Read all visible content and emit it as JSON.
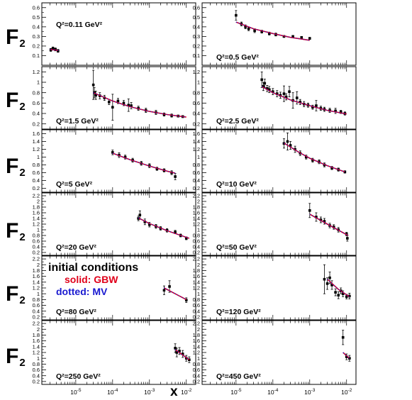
{
  "y_label": "F",
  "y_label_sub": "2",
  "x_label": "x",
  "legend": {
    "title": "initial conditions",
    "solid": "solid: GBW",
    "dotted": "dotted: MV"
  },
  "colors": {
    "solid_curve": "#e0001a",
    "dotted_curve": "#1a1ad0",
    "points": "#000000"
  },
  "chart_data": {
    "type": "scatter",
    "xlabel": "x",
    "ylabel": "F2",
    "xscale": "log",
    "xlim": [
      1.2e-06,
      0.018
    ],
    "x_ticks": [
      1e-05,
      0.0001,
      0.001,
      0.01
    ],
    "x_tick_labels": [
      [
        "10",
        "-5"
      ],
      [
        "10",
        "-4"
      ],
      [
        "10",
        "-3"
      ],
      [
        "10",
        "-2"
      ]
    ],
    "panels": [
      {
        "title": "Q²=0.11 GeV²",
        "ylim": [
          0.0,
          0.65
        ],
        "yticks": [
          0.1,
          0.2,
          0.3,
          0.4,
          0.5,
          0.6
        ],
        "ytick_labels": [
          "0.1",
          "0.2",
          "0.3",
          "0.4",
          "0.5",
          "0.6"
        ],
        "points": [
          [
            2.1e-06,
            0.16,
            0.015
          ],
          [
            2.4e-06,
            0.175,
            0.015
          ],
          [
            2.8e-06,
            0.165,
            0.015
          ],
          [
            3.3e-06,
            0.15,
            0.015
          ]
        ],
        "curve": [
          [
            2e-06,
            0.165
          ],
          [
            3.4e-06,
            0.155
          ]
        ]
      },
      {
        "title": "Q²=0.5 GeV²",
        "ylim": [
          0.0,
          0.65
        ],
        "yticks": [
          0.1,
          0.2,
          0.3,
          0.4,
          0.5,
          0.6
        ],
        "ytick_labels": [
          "0.1",
          "0.2",
          "0.3",
          "0.4",
          "0.5",
          "0.6"
        ],
        "points": [
          [
            1e-05,
            0.52,
            0.05
          ],
          [
            1.4e-05,
            0.43,
            0.02
          ],
          [
            1.8e-05,
            0.4,
            0.02
          ],
          [
            2.2e-05,
            0.38,
            0.02
          ],
          [
            3.2e-05,
            0.36,
            0.02
          ],
          [
            5e-05,
            0.35,
            0.015
          ],
          [
            8e-05,
            0.33,
            0.015
          ],
          [
            0.00012,
            0.32,
            0.015
          ],
          [
            0.0002,
            0.3,
            0.01
          ],
          [
            0.00035,
            0.3,
            0.01
          ],
          [
            0.0006,
            0.29,
            0.01
          ],
          [
            0.001,
            0.28,
            0.01
          ]
        ],
        "curve": [
          [
            1e-05,
            0.45
          ],
          [
            3e-05,
            0.38
          ],
          [
            0.0001,
            0.33
          ],
          [
            0.0003,
            0.29
          ],
          [
            0.001,
            0.26
          ]
        ]
      },
      {
        "title": "Q²=1.5 GeV²",
        "ylim": [
          0.1,
          1.3
        ],
        "yticks": [
          0.2,
          0.4,
          0.6,
          0.8,
          1.0,
          1.2
        ],
        "ytick_labels": [
          "0.2",
          "0.4",
          "0.6",
          "0.8",
          "1",
          "1.2"
        ],
        "points": [
          [
            3e-05,
            0.95,
            0.28
          ],
          [
            3.2e-05,
            0.8,
            0.1
          ],
          [
            3.5e-05,
            0.75,
            0.08
          ],
          [
            4.5e-05,
            0.74,
            0.06
          ],
          [
            6e-05,
            0.7,
            0.05
          ],
          [
            8e-05,
            0.62,
            0.05
          ],
          [
            0.0001,
            0.52,
            0.25
          ],
          [
            0.00014,
            0.64,
            0.05
          ],
          [
            0.0002,
            0.6,
            0.05
          ],
          [
            0.00027,
            0.56,
            0.12
          ],
          [
            0.00032,
            0.55,
            0.06
          ],
          [
            0.0005,
            0.5,
            0.04
          ],
          [
            0.0008,
            0.46,
            0.04
          ],
          [
            0.0015,
            0.42,
            0.04
          ],
          [
            0.0025,
            0.38,
            0.03
          ],
          [
            0.004,
            0.36,
            0.03
          ],
          [
            0.006,
            0.35,
            0.02
          ],
          [
            0.008,
            0.34,
            0.02
          ]
        ],
        "curve": [
          [
            3e-05,
            0.8
          ],
          [
            0.0001,
            0.64
          ],
          [
            0.0003,
            0.53
          ],
          [
            0.001,
            0.44
          ],
          [
            0.003,
            0.38
          ],
          [
            0.01,
            0.33
          ]
        ]
      },
      {
        "title": "Q²=2.5 GeV²",
        "ylim": [
          0.1,
          1.3
        ],
        "yticks": [
          0.2,
          0.4,
          0.6,
          0.8,
          1.0,
          1.2
        ],
        "ytick_labels": [
          "0.2",
          "0.4",
          "0.6",
          "0.8",
          "1",
          "1.2"
        ],
        "points": [
          [
            5e-05,
            1.05,
            0.15
          ],
          [
            5.5e-05,
            0.92,
            0.08
          ],
          [
            6e-05,
            0.98,
            0.08
          ],
          [
            7e-05,
            0.88,
            0.06
          ],
          [
            8e-05,
            0.86,
            0.06
          ],
          [
            0.0001,
            0.82,
            0.06
          ],
          [
            0.00013,
            0.78,
            0.06
          ],
          [
            0.00016,
            0.75,
            0.06
          ],
          [
            0.0002,
            0.78,
            0.15
          ],
          [
            0.00023,
            0.72,
            0.06
          ],
          [
            0.00028,
            0.82,
            0.1
          ],
          [
            0.00035,
            0.65,
            0.15
          ],
          [
            0.00045,
            0.7,
            0.12
          ],
          [
            0.00055,
            0.62,
            0.05
          ],
          [
            0.0007,
            0.58,
            0.05
          ],
          [
            0.0009,
            0.56,
            0.04
          ],
          [
            0.0012,
            0.52,
            0.04
          ],
          [
            0.0015,
            0.55,
            0.1
          ],
          [
            0.002,
            0.5,
            0.04
          ],
          [
            0.0025,
            0.48,
            0.04
          ],
          [
            0.0035,
            0.46,
            0.04
          ],
          [
            0.005,
            0.45,
            0.05
          ],
          [
            0.007,
            0.43,
            0.03
          ],
          [
            0.009,
            0.4,
            0.03
          ]
        ],
        "curve": [
          [
            5e-05,
            0.92
          ],
          [
            0.0001,
            0.8
          ],
          [
            0.0003,
            0.66
          ],
          [
            0.001,
            0.55
          ],
          [
            0.003,
            0.46
          ],
          [
            0.01,
            0.39
          ]
        ]
      },
      {
        "title": "Q²=5 GeV²",
        "ylim": [
          0.1,
          1.7
        ],
        "yticks": [
          0.2,
          0.4,
          0.6,
          0.8,
          1.0,
          1.2,
          1.4,
          1.6
        ],
        "ytick_labels": [
          "0.2",
          "0.4",
          "0.6",
          "0.8",
          "1",
          "1.2",
          "1.4",
          "1.6"
        ],
        "points": [
          [
            0.0001,
            1.12,
            0.06
          ],
          [
            0.00015,
            1.05,
            0.06
          ],
          [
            0.00022,
            1.0,
            0.05
          ],
          [
            0.00035,
            0.92,
            0.05
          ],
          [
            0.0006,
            0.84,
            0.05
          ],
          [
            0.001,
            0.78,
            0.05
          ],
          [
            0.0016,
            0.7,
            0.04
          ],
          [
            0.0025,
            0.66,
            0.04
          ],
          [
            0.004,
            0.6,
            0.05
          ],
          [
            0.005,
            0.5,
            0.08
          ]
        ],
        "curve": [
          [
            0.0001,
            1.1
          ],
          [
            0.0003,
            0.93
          ],
          [
            0.001,
            0.77
          ],
          [
            0.003,
            0.64
          ],
          [
            0.005,
            0.59
          ]
        ]
      },
      {
        "title": "Q²=10 GeV²",
        "ylim": [
          0.1,
          1.7
        ],
        "yticks": [
          0.2,
          0.4,
          0.6,
          0.8,
          1.0,
          1.2,
          1.4,
          1.6
        ],
        "ytick_labels": [
          "0.2",
          "0.4",
          "0.6",
          "0.8",
          "1",
          "1.2",
          "1.4",
          "1.6"
        ],
        "points": [
          [
            0.0002,
            1.35,
            0.12
          ],
          [
            0.00025,
            1.4,
            0.22
          ],
          [
            0.0003,
            1.3,
            0.1
          ],
          [
            0.0004,
            1.2,
            0.08
          ],
          [
            0.00055,
            1.1,
            0.06
          ],
          [
            0.0008,
            1.0,
            0.05
          ],
          [
            0.0012,
            0.92,
            0.05
          ],
          [
            0.0018,
            0.88,
            0.05
          ],
          [
            0.0025,
            0.8,
            0.05
          ],
          [
            0.004,
            0.72,
            0.04
          ],
          [
            0.006,
            0.68,
            0.04
          ],
          [
            0.009,
            0.62,
            0.03
          ]
        ],
        "curve": [
          [
            0.0002,
            1.36
          ],
          [
            0.0005,
            1.13
          ],
          [
            0.001,
            0.97
          ],
          [
            0.003,
            0.78
          ],
          [
            0.009,
            0.62
          ]
        ]
      },
      {
        "title": "Q²=20 GeV²",
        "ylim": [
          0.1,
          2.3
        ],
        "yticks": [
          0.2,
          0.4,
          0.6,
          0.8,
          1.0,
          1.2,
          1.4,
          1.6,
          1.8,
          2.0,
          2.2
        ],
        "ytick_labels": [
          "0.2",
          "0.4",
          "0.6",
          "0.8",
          "1",
          "1.2",
          "1.4",
          "1.6",
          "1.8",
          "2",
          "2.2"
        ],
        "points": [
          [
            0.0005,
            1.4,
            0.08
          ],
          [
            0.00055,
            1.52,
            0.15
          ],
          [
            0.00075,
            1.28,
            0.1
          ],
          [
            0.001,
            1.18,
            0.08
          ],
          [
            0.0015,
            1.12,
            0.07
          ],
          [
            0.002,
            1.05,
            0.06
          ],
          [
            0.003,
            0.98,
            0.06
          ],
          [
            0.005,
            0.92,
            0.06
          ],
          [
            0.007,
            0.8,
            0.05
          ],
          [
            0.01,
            0.7,
            0.05
          ]
        ],
        "curve": [
          [
            0.0005,
            1.42
          ],
          [
            0.001,
            1.22
          ],
          [
            0.003,
            0.97
          ],
          [
            0.012,
            0.7
          ]
        ]
      },
      {
        "title": "Q²=50 GeV²",
        "ylim": [
          0.1,
          2.3
        ],
        "yticks": [
          0.2,
          0.4,
          0.6,
          0.8,
          1.0,
          1.2,
          1.4,
          1.6,
          1.8,
          2.0,
          2.2
        ],
        "ytick_labels": [
          "0.2",
          "0.4",
          "0.6",
          "0.8",
          "1",
          "1.2",
          "1.4",
          "1.6",
          "1.8",
          "2",
          "2.2"
        ],
        "points": [
          [
            0.001,
            1.68,
            0.25
          ],
          [
            0.0015,
            1.45,
            0.15
          ],
          [
            0.002,
            1.35,
            0.1
          ],
          [
            0.0025,
            1.3,
            0.1
          ],
          [
            0.0035,
            1.15,
            0.08
          ],
          [
            0.0045,
            1.1,
            0.08
          ],
          [
            0.006,
            1.0,
            0.08
          ],
          [
            0.01,
            0.85,
            0.06
          ],
          [
            0.0105,
            0.7,
            0.1
          ]
        ],
        "curve": [
          [
            0.001,
            1.55
          ],
          [
            0.003,
            1.2
          ],
          [
            0.011,
            0.8
          ]
        ]
      },
      {
        "title": "Q²=80 GeV²",
        "ylim": [
          0.1,
          2.3
        ],
        "yticks": [
          0.2,
          0.4,
          0.6,
          0.8,
          1.0,
          1.2,
          1.4,
          1.6,
          1.8,
          2.0,
          2.2
        ],
        "ytick_labels": [
          "0.2",
          "0.4",
          "0.6",
          "0.8",
          "1",
          "1.2",
          "1.4",
          "1.6",
          "1.8",
          "2",
          "2.2"
        ],
        "points": [
          [
            0.0025,
            1.12,
            0.15
          ],
          [
            0.0035,
            1.25,
            0.2
          ],
          [
            0.01,
            0.78,
            0.08
          ]
        ],
        "curve": [
          [
            0.0025,
            1.2
          ],
          [
            0.01,
            0.8
          ]
        ]
      },
      {
        "title": "Q²=120 GeV²",
        "ylim": [
          0.1,
          2.3
        ],
        "yticks": [
          0.2,
          0.4,
          0.6,
          0.8,
          1.0,
          1.2,
          1.4,
          1.6,
          1.8,
          2.0,
          2.2
        ],
        "ytick_labels": [
          "0.2",
          "0.4",
          "0.6",
          "0.8",
          "1",
          "1.2",
          "1.4",
          "1.6",
          "1.8",
          "2",
          "2.2"
        ],
        "points": [
          [
            0.0025,
            1.5,
            0.5
          ],
          [
            0.003,
            1.35,
            0.2
          ],
          [
            0.0035,
            1.55,
            0.2
          ],
          [
            0.004,
            1.3,
            0.15
          ],
          [
            0.005,
            1.05,
            0.12
          ],
          [
            0.006,
            0.95,
            0.12
          ],
          [
            0.007,
            1.1,
            0.1
          ],
          [
            0.008,
            1.0,
            0.1
          ],
          [
            0.01,
            0.9,
            0.08
          ],
          [
            0.012,
            0.92,
            0.1
          ]
        ],
        "curve": [
          [
            0.003,
            1.5
          ],
          [
            0.006,
            1.15
          ],
          [
            0.012,
            0.9
          ]
        ]
      },
      {
        "title": "Q²=250 GeV²",
        "ylim": [
          0.1,
          2.3
        ],
        "yticks": [
          0.2,
          0.4,
          0.6,
          0.8,
          1.0,
          1.2,
          1.4,
          1.6,
          1.8,
          2.0,
          2.2
        ],
        "ytick_labels": [
          "0.2",
          "0.4",
          "0.6",
          "0.8",
          "1",
          "1.2",
          "1.4",
          "1.6",
          "1.8",
          "2",
          "2.2"
        ],
        "points": [
          [
            0.005,
            1.35,
            0.15
          ],
          [
            0.0055,
            1.2,
            0.15
          ],
          [
            0.0065,
            1.25,
            0.12
          ],
          [
            0.008,
            1.15,
            0.12
          ],
          [
            0.01,
            1.0,
            0.1
          ],
          [
            0.012,
            0.95,
            0.1
          ]
        ],
        "curve": [
          [
            0.005,
            1.3
          ],
          [
            0.012,
            0.95
          ]
        ]
      },
      {
        "title": "Q²=450 GeV²",
        "ylim": [
          0.1,
          2.3
        ],
        "yticks": [
          0.2,
          0.4,
          0.6,
          0.8,
          1.0,
          1.2,
          1.4,
          1.6,
          1.8,
          2.0,
          2.2
        ],
        "ytick_labels": [
          "0.2",
          "0.4",
          "0.6",
          "0.8",
          "1",
          "1.2",
          "1.4",
          "1.6",
          "1.8",
          "2",
          "2.2"
        ],
        "points": [
          [
            0.008,
            1.72,
            0.25
          ],
          [
            0.01,
            1.05,
            0.1
          ],
          [
            0.012,
            1.0,
            0.1
          ]
        ],
        "curve": [
          [
            0.008,
            1.2
          ],
          [
            0.012,
            1.0
          ]
        ]
      }
    ]
  }
}
